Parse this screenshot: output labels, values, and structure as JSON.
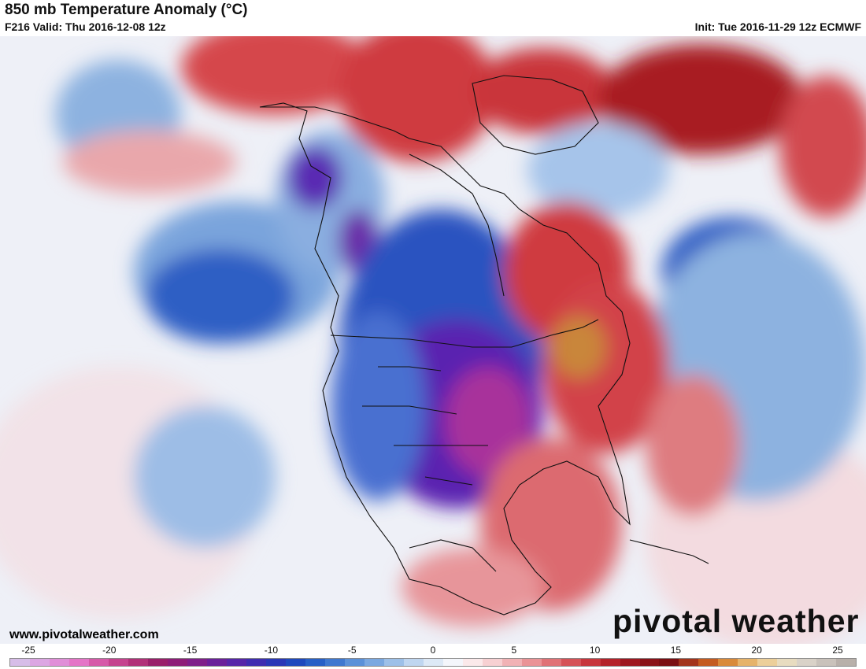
{
  "header": {
    "title": "850 mb Temperature Anomaly (°C)",
    "valid": "F216 Valid: Thu 2016-12-08 12z",
    "init": "Init: Tue 2016-11-29 12z ECMWF"
  },
  "footer": {
    "site": "www.pivotalweather.com",
    "brand": "pivotal weather"
  },
  "legend": {
    "ticks": [
      "-25",
      "-20",
      "-15",
      "-10",
      "-5",
      "0",
      "5",
      "10",
      "15",
      "20",
      "25"
    ],
    "colors": [
      "#d7bde8",
      "#dca6e3",
      "#e08fd8",
      "#e475c7",
      "#d65aa9",
      "#c5438e",
      "#b13078",
      "#9a1f6a",
      "#8e1d78",
      "#7f1f8a",
      "#6b209a",
      "#5626a8",
      "#3f2db0",
      "#2a37b6",
      "#1f49bd",
      "#2860c6",
      "#3f78cf",
      "#5b91d8",
      "#7aa8e0",
      "#9dc0e8",
      "#bfd6f0",
      "#dde9f6",
      "#f4f6fb",
      "#fbe9ea",
      "#f7d0d2",
      "#f1b2b5",
      "#ea9396",
      "#e07276",
      "#d55257",
      "#c7363c",
      "#b4232a",
      "#9e1820",
      "#8a1218",
      "#7a0e12",
      "#a3341c",
      "#c45b20",
      "#d98a3a",
      "#e6b36a",
      "#eccf9a",
      "#e8dcc0",
      "#d9d2c8",
      "#c9c2bb",
      "#b8b0aa"
    ]
  },
  "map": {
    "colors": {
      "ocean_base": "#eef0f7",
      "strong_cold": "#5322b0",
      "cold_core": "#1f4cbf",
      "warm_anomaly": "#d5424a",
      "hot_core": "#c9863b",
      "boundaries": "#111111"
    }
  }
}
